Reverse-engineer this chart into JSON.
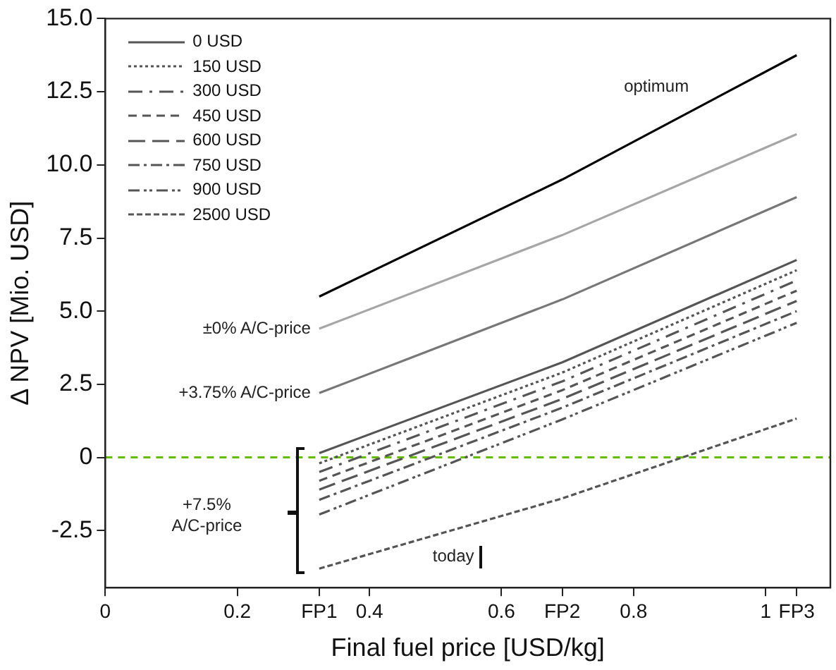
{
  "chart_data": {
    "type": "line",
    "xlabel": "Final fuel price [USD/kg]",
    "ylabel": "Δ NPV [Mio. USD]",
    "xlim": [
      0,
      1.098
    ],
    "ylim": [
      -4.45,
      15
    ],
    "xticks": [
      0,
      0.2,
      0.4,
      0.6,
      0.8,
      1,
      {
        "value": 0.324,
        "label": "FP1"
      },
      {
        "value": 0.692,
        "label": "FP2"
      },
      {
        "value": 1.047,
        "label": "FP3"
      }
    ],
    "yticks": [
      -2.5,
      0,
      2.5,
      {
        "value": 5,
        "label": "5.0"
      },
      {
        "value": 7.5,
        "label": "7.5"
      },
      {
        "value": 10,
        "label": "10.0"
      },
      {
        "value": 12.5,
        "label": "12.5"
      },
      {
        "value": 15,
        "label": "15.0"
      }
    ],
    "x": [
      0.324,
      0.692,
      1.047
    ],
    "series": [
      {
        "color": "#000000",
        "values": [
          5.5,
          9.5,
          13.75
        ],
        "line_style": "solid"
      },
      {
        "color": "#a6a6a6",
        "values": [
          4.4,
          7.6,
          11.05
        ],
        "line_style": "solid"
      },
      {
        "color": "#777777",
        "values": [
          2.2,
          5.4,
          8.9
        ],
        "line_style": "solid"
      },
      {
        "name": "0 USD",
        "color": "#555555",
        "values": [
          0.15,
          3.25,
          6.75
        ],
        "line_style": "solid"
      },
      {
        "name": "150 USD",
        "color": "#555555",
        "values": [
          -0.2,
          2.9,
          6.4
        ],
        "line_style": "dotted"
      },
      {
        "name": "300 USD",
        "color": "#555555",
        "values": [
          -0.5,
          2.6,
          6.05
        ],
        "line_style": "dashed"
      },
      {
        "name": "450 USD",
        "color": "#555555",
        "values": [
          -0.8,
          2.3,
          5.7
        ],
        "line_style": "dashed"
      },
      {
        "name": "600 USD",
        "color": "#555555",
        "values": [
          -1.1,
          2.0,
          5.35
        ],
        "line_style": "dashed"
      },
      {
        "name": "750 USD",
        "color": "#555555",
        "values": [
          -1.45,
          1.7,
          5.0
        ],
        "line_style": "dashed"
      },
      {
        "name": "900 USD",
        "color": "#555555",
        "values": [
          -1.95,
          1.3,
          4.6
        ],
        "line_style": "dashed"
      },
      {
        "name": "2500 USD",
        "color": "#555555",
        "values": [
          -3.8,
          -1.4,
          1.33
        ],
        "line_style": "dashed"
      }
    ],
    "ref_lines": [
      {
        "axis": "y",
        "value": 0,
        "color": "#66bb00",
        "line_style": "dashed"
      }
    ],
    "annotations": [
      "optimum",
      {
        "text": "±0% A/C-price",
        "x": 0.324,
        "y": 4.4
      },
      {
        "text": "+3.75% A/C-price",
        "x": 0.324,
        "y": 2.2
      },
      "+7.5%\nA/C-price",
      "today"
    ],
    "grid": false,
    "legend": "top left",
    "marker": "none"
  }
}
